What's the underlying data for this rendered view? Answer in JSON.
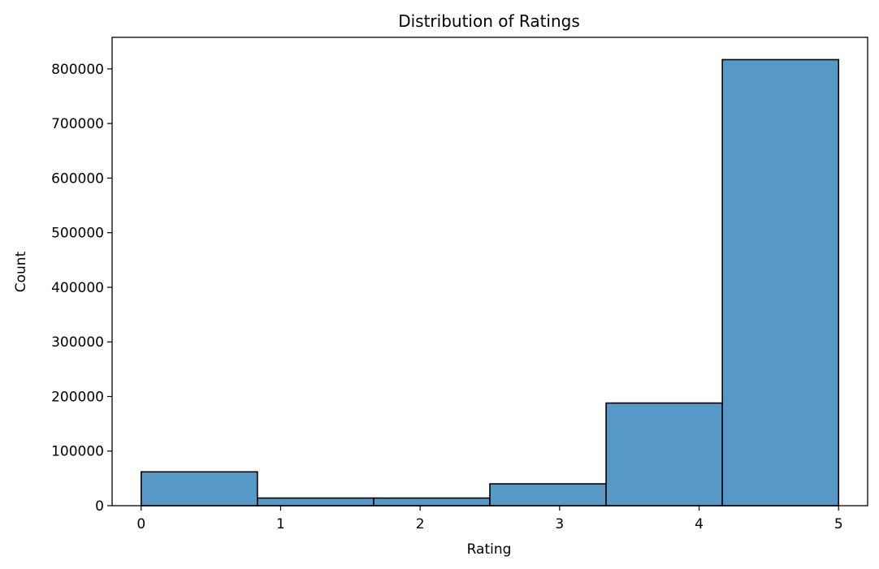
{
  "chart_data": {
    "type": "bar",
    "title": "Distribution of Ratings",
    "xlabel": "Rating",
    "ylabel": "Count",
    "bins": [
      {
        "x0": 0.0,
        "x1": 0.8333,
        "count": 62000
      },
      {
        "x0": 0.8333,
        "x1": 1.6667,
        "count": 14000
      },
      {
        "x0": 1.6667,
        "x1": 2.5,
        "count": 14000
      },
      {
        "x0": 2.5,
        "x1": 3.3333,
        "count": 40000
      },
      {
        "x0": 3.3333,
        "x1": 4.1667,
        "count": 188000
      },
      {
        "x0": 4.1667,
        "x1": 5.0,
        "count": 817000
      }
    ],
    "xlim": [
      -0.2083,
      5.2083
    ],
    "ylim": [
      0,
      857850
    ],
    "xticks": [
      0,
      1,
      2,
      3,
      4,
      5
    ],
    "xtick_labels": [
      "0",
      "1",
      "2",
      "3",
      "4",
      "5"
    ],
    "yticks": [
      0,
      100000,
      200000,
      300000,
      400000,
      500000,
      600000,
      700000,
      800000
    ],
    "ytick_labels": [
      "0",
      "100000",
      "200000",
      "300000",
      "400000",
      "500000",
      "600000",
      "700000",
      "800000"
    ],
    "bar_color": "#5799c6",
    "edge_color": "#000000",
    "grid": false
  }
}
